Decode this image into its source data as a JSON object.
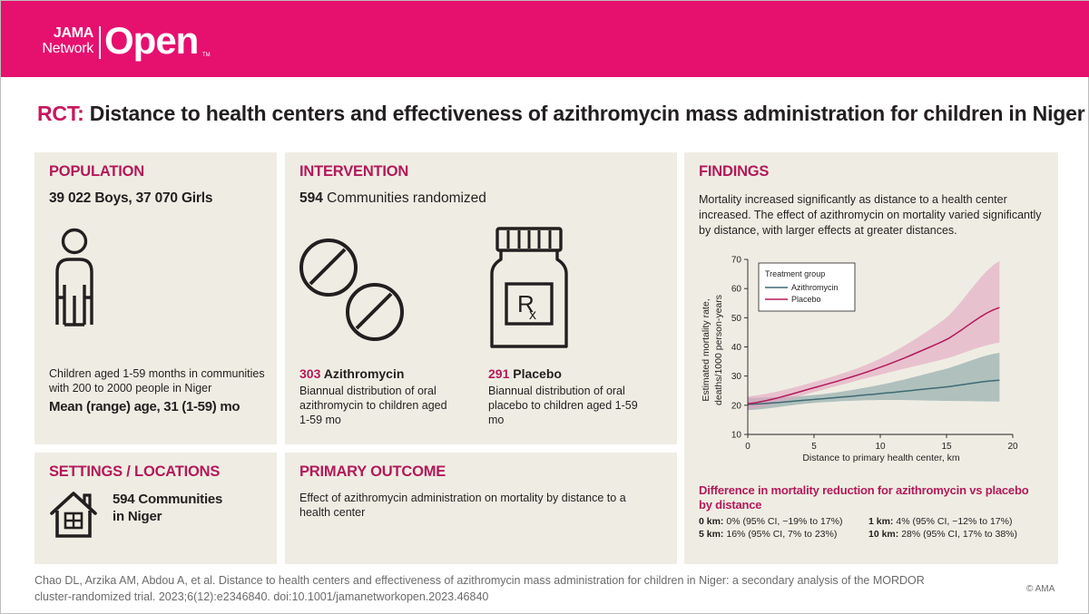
{
  "brand": {
    "jama": "JAMA",
    "network": "Network",
    "open": "Open",
    "tm": "TM",
    "color": "#e6106f"
  },
  "title": {
    "prefix": "RCT:",
    "text": "Distance to health centers and effectiveness of azithromycin mass administration for children in Niger"
  },
  "population": {
    "heading": "POPULATION",
    "count": "39 022 Boys, 37 070 Girls",
    "description": "Children aged 1-59 months in communities with 200 to 2000 people in Niger",
    "age": "Mean (range) age, 31 (1-59) mo",
    "icon": "person-icon"
  },
  "intervention": {
    "heading": "INTERVENTION",
    "count_number": "594",
    "count_text": " Communities randomized",
    "azithromycin": {
      "number": "303",
      "label": " Azithromycin",
      "description": "Biannual distribution of oral azithromycin to children aged 1-59 mo",
      "icon": "pills-icon"
    },
    "placebo": {
      "number": "291",
      "label": " Placebo",
      "description": "Biannual distribution of oral placebo to children aged 1-59 mo",
      "icon": "prescription-bottle-icon"
    }
  },
  "settings": {
    "heading": "SETTINGS / LOCATIONS",
    "line1": "594 Communities",
    "line2": "in Niger",
    "icon": "house-icon"
  },
  "outcome": {
    "heading": "PRIMARY OUTCOME",
    "text": "Effect of azithromycin administration on mortality by distance to a health center"
  },
  "findings": {
    "heading": "FINDINGS",
    "description": "Mortality increased significantly as distance to a health center increased. The effect of azithromycin on mortality varied significantly by distance, with larger effects at greater distances.",
    "difference_title": "Difference in mortality reduction for azithromycin vs placebo by distance",
    "differences": [
      {
        "km": "0 km:",
        "value": " 0% (95% CI, −19% to 17%)"
      },
      {
        "km": "1 km:",
        "value": " 4% (95% CI, −12% to 17%)"
      },
      {
        "km": "5 km:",
        "value": " 16% (95% CI, 7% to 23%)"
      },
      {
        "km": "10 km:",
        "value": " 28% (95% CI, 17% to 38%)"
      }
    ]
  },
  "chart_data": {
    "type": "line",
    "title": "",
    "xlabel": "Distance to primary health center, km",
    "ylabel_line1": "Estimated mortality rate,",
    "ylabel_line2": "deaths/1000 person-years",
    "xlim": [
      0,
      20
    ],
    "ylim": [
      10,
      70
    ],
    "xticks": [
      0,
      5,
      10,
      15,
      20
    ],
    "yticks": [
      10,
      20,
      30,
      40,
      50,
      60,
      70
    ],
    "legend_title": "Treatment group",
    "legend_position": "top-left",
    "series": [
      {
        "name": "Azithromycin",
        "color": "#3e6a72",
        "band_color": "#9ab0b0",
        "x": [
          0,
          5,
          10,
          15,
          19
        ],
        "y": [
          20.3,
          22.0,
          24.0,
          26.3,
          28.6
        ],
        "lower": [
          18.3,
          20.8,
          21.8,
          21.5,
          21.3
        ],
        "upper": [
          22.5,
          23.5,
          27.0,
          32.5,
          38.0
        ]
      },
      {
        "name": "Placebo",
        "color": "#b21a5a",
        "band_color": "#e3a3bf",
        "x": [
          0,
          5,
          10,
          15,
          19
        ],
        "y": [
          20.5,
          26.0,
          33.0,
          42.5,
          53.5
        ],
        "lower": [
          18.5,
          24.5,
          30.5,
          36.0,
          41.5
        ],
        "upper": [
          23.0,
          28.0,
          36.0,
          50.0,
          69.5
        ]
      }
    ]
  },
  "citation": "Chao DL, Arzika AM, Abdou A, et al. Distance to health centers and effectiveness of azithromycin mass administration for children in Niger: a secondary analysis of the MORDOR cluster-randomized trial. 2023;6(12):e2346840. doi:10.1001/jamanetworkopen.2023.46840",
  "copyright": "© AMA"
}
